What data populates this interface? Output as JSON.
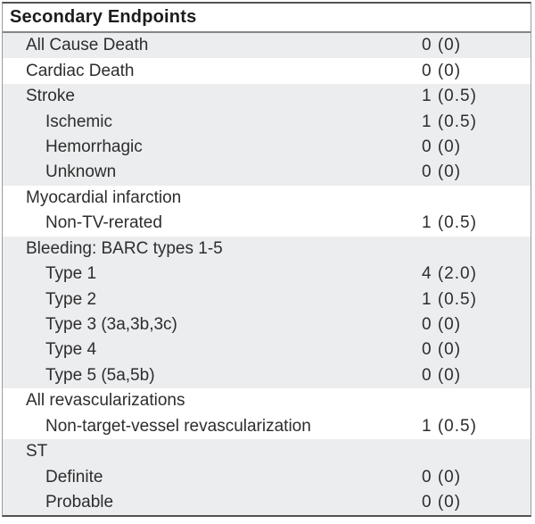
{
  "table": {
    "title": "Secondary Endpoints",
    "rows": [
      {
        "label": "All Cause Death",
        "value": "0 (0)",
        "indent": 1,
        "shade": "gray"
      },
      {
        "label": "Cardiac Death",
        "value": "0 (0)",
        "indent": 1,
        "shade": "white"
      },
      {
        "label": "Stroke",
        "value": "1 (0.5)",
        "indent": 1,
        "shade": "gray"
      },
      {
        "label": "Ischemic",
        "value": "1 (0.5)",
        "indent": 2,
        "shade": "gray"
      },
      {
        "label": "Hemorrhagic",
        "value": "0 (0)",
        "indent": 2,
        "shade": "gray"
      },
      {
        "label": "Unknown",
        "value": "0 (0)",
        "indent": 2,
        "shade": "gray"
      },
      {
        "label": "Myocardial infarction",
        "value": "",
        "indent": 1,
        "shade": "white"
      },
      {
        "label": "Non-TV-rerated",
        "value": "1 (0.5)",
        "indent": 2,
        "shade": "white"
      },
      {
        "label": "Bleeding: BARC types 1-5",
        "value": "",
        "indent": 1,
        "shade": "gray"
      },
      {
        "label": "Type 1",
        "value": "4 (2.0)",
        "indent": 2,
        "shade": "gray"
      },
      {
        "label": "Type 2",
        "value": "1 (0.5)",
        "indent": 2,
        "shade": "gray"
      },
      {
        "label": "Type 3 (3a,3b,3c)",
        "value": "0 (0)",
        "indent": 2,
        "shade": "gray"
      },
      {
        "label": "Type 4",
        "value": "0 (0)",
        "indent": 2,
        "shade": "gray"
      },
      {
        "label": "Type 5 (5a,5b)",
        "value": "0 (0)",
        "indent": 2,
        "shade": "gray"
      },
      {
        "label": "All revascularizations",
        "value": "",
        "indent": 1,
        "shade": "white"
      },
      {
        "label": "Non-target-vessel revascularization",
        "value": "1 (0.5)",
        "indent": 2,
        "shade": "white"
      },
      {
        "label": "ST",
        "value": "",
        "indent": 1,
        "shade": "gray"
      },
      {
        "label": "Definite",
        "value": "0 (0)",
        "indent": 2,
        "shade": "gray"
      },
      {
        "label": "Probable",
        "value": "0 (0)",
        "indent": 2,
        "shade": "gray"
      }
    ]
  },
  "chart_data": {
    "type": "table",
    "title": "Secondary Endpoints",
    "rows": [
      [
        "All Cause Death",
        "0 (0)"
      ],
      [
        "Cardiac Death",
        "0 (0)"
      ],
      [
        "Stroke",
        "1 (0.5)"
      ],
      [
        "Ischemic",
        "1 (0.5)"
      ],
      [
        "Hemorrhagic",
        "0 (0)"
      ],
      [
        "Unknown",
        "0 (0)"
      ],
      [
        "Myocardial infarction",
        ""
      ],
      [
        "Non-TV-rerated",
        "1 (0.5)"
      ],
      [
        "Bleeding: BARC types 1-5",
        ""
      ],
      [
        "Type 1",
        "4 (2.0)"
      ],
      [
        "Type 2",
        "1 (0.5)"
      ],
      [
        "Type 3 (3a,3b,3c)",
        "0 (0)"
      ],
      [
        "Type 4",
        "0 (0)"
      ],
      [
        "Type 5 (5a,5b)",
        "0 (0)"
      ],
      [
        "All revascularizations",
        ""
      ],
      [
        "Non-target-vessel revascularization",
        "1 (0.5)"
      ],
      [
        "ST",
        ""
      ],
      [
        "Definite",
        "0 (0)"
      ],
      [
        "Probable",
        "0 (0)"
      ]
    ]
  },
  "colors": {
    "row_shade_gray": "#ecedef",
    "row_shade_white": "#ffffff",
    "border_dark": "#525252",
    "border_light": "#9b9b9b",
    "header_rule": "#868686",
    "text": "#2d2d2d"
  }
}
